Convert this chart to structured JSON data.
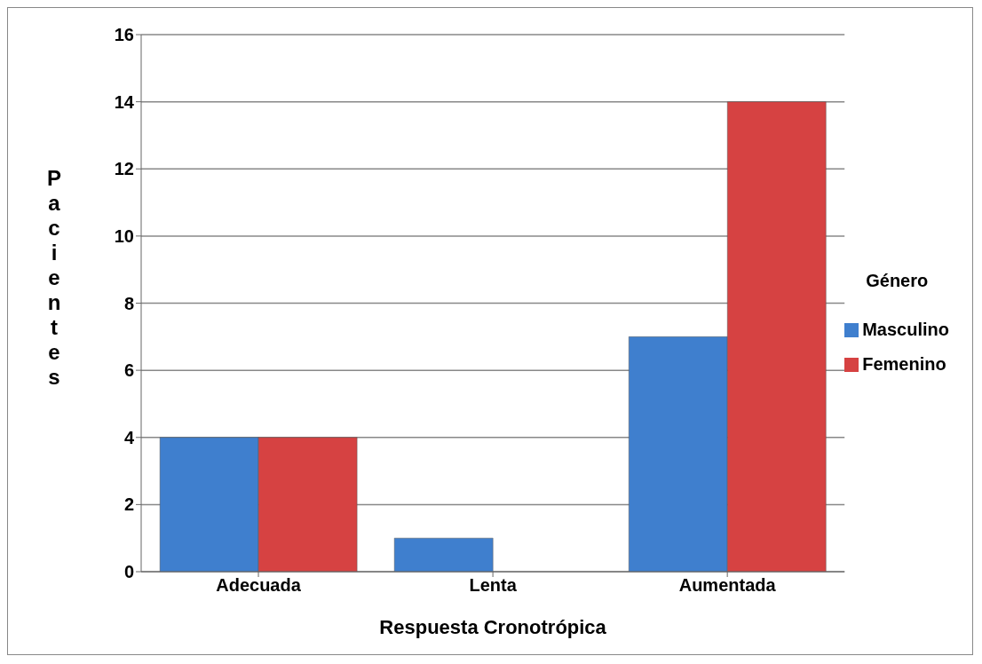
{
  "chart_data": {
    "type": "bar",
    "xlabel": "Respuesta Cronotrópica",
    "ylabel": "Pacientes",
    "legend_title": "Género",
    "categories": [
      "Adecuada",
      "Lenta",
      "Aumentada"
    ],
    "series": [
      {
        "name": "Masculino",
        "color": "#3f7fce",
        "values": [
          4,
          1,
          7
        ]
      },
      {
        "name": "Femenino",
        "color": "#d64242",
        "values": [
          4,
          0,
          14
        ]
      }
    ],
    "ylim": [
      0,
      16
    ],
    "yticks": [
      0,
      2,
      4,
      6,
      8,
      10,
      12,
      14,
      16
    ],
    "grid": "y",
    "legend": "right"
  }
}
